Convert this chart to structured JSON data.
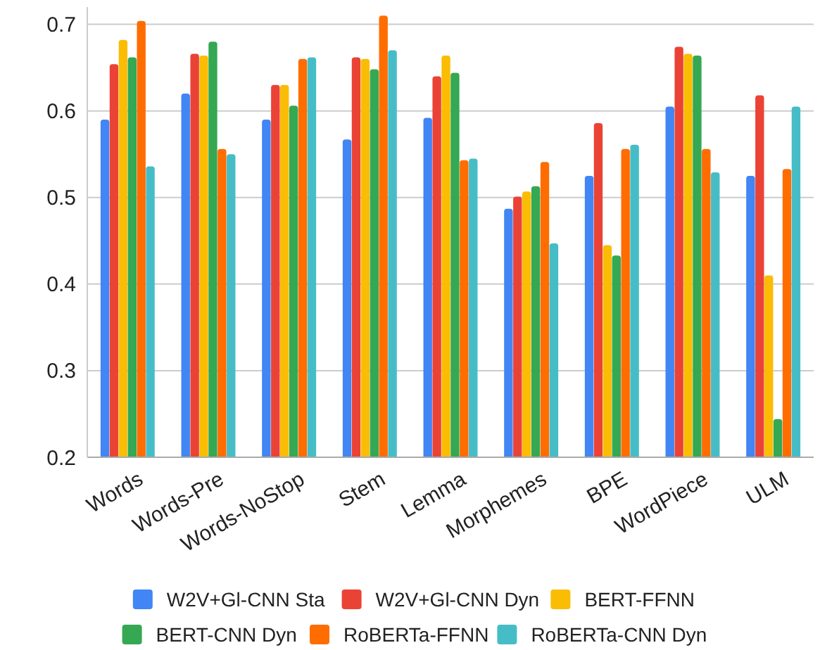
{
  "chart_data": {
    "type": "bar",
    "categories": [
      "Words",
      "Words-Pre",
      "Words-NoStop",
      "Stem",
      "Lemma",
      "Morphemes",
      "BPE",
      "WordPiece",
      "ULM"
    ],
    "series": [
      {
        "name": "W2V+Gl-CNN Sta",
        "color": "#4285f4",
        "values": [
          0.59,
          0.62,
          0.59,
          0.567,
          0.592,
          0.487,
          0.525,
          0.605,
          0.525
        ]
      },
      {
        "name": "W2V+Gl-CNN Dyn",
        "color": "#ea4335",
        "values": [
          0.654,
          0.666,
          0.63,
          0.662,
          0.64,
          0.501,
          0.586,
          0.674,
          0.618
        ]
      },
      {
        "name": "BERT-FFNN",
        "color": "#fbbc04",
        "values": [
          0.682,
          0.664,
          0.63,
          0.66,
          0.664,
          0.507,
          0.445,
          0.666,
          0.41
        ]
      },
      {
        "name": "BERT-CNN Dyn",
        "color": "#34a853",
        "values": [
          0.662,
          0.68,
          0.606,
          0.648,
          0.644,
          0.513,
          0.433,
          0.664,
          0.244
        ]
      },
      {
        "name": "RoBERTa-FFNN",
        "color": "#ff6d01",
        "values": [
          0.704,
          0.556,
          0.66,
          0.71,
          0.543,
          0.541,
          0.556,
          0.556,
          0.533
        ]
      },
      {
        "name": "RoBERTa-CNN Dyn",
        "color": "#46bdc6",
        "values": [
          0.536,
          0.55,
          0.662,
          0.67,
          0.545,
          0.447,
          0.561,
          0.529,
          0.605
        ]
      }
    ],
    "ylim": [
      0.2,
      0.72
    ],
    "yticks": [
      0.2,
      0.3,
      0.4,
      0.5,
      0.6,
      0.7
    ],
    "grid": "y",
    "legend": "bottom"
  }
}
